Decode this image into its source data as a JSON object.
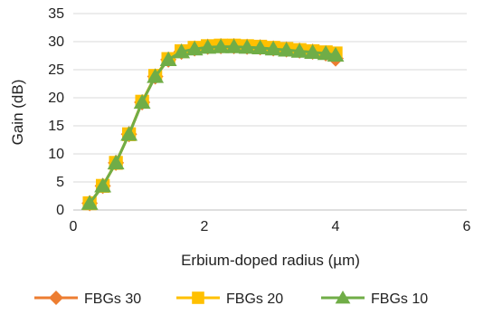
{
  "chart_data": {
    "type": "line",
    "title": "",
    "xlabel": "Erbium-doped radius (µm)",
    "ylabel": "Gain (dB)",
    "xlim": [
      0,
      6
    ],
    "ylim": [
      0,
      35
    ],
    "xticks": [
      0,
      2,
      4,
      6
    ],
    "yticks": [
      0,
      5,
      10,
      15,
      20,
      25,
      30,
      35
    ],
    "grid": "horizontal",
    "legend_position": "bottom",
    "x": [
      0.25,
      0.45,
      0.65,
      0.85,
      1.05,
      1.25,
      1.45,
      1.65,
      1.85,
      2.05,
      2.25,
      2.45,
      2.65,
      2.85,
      3.05,
      3.25,
      3.45,
      3.65,
      3.85,
      4.0
    ],
    "series": [
      {
        "name": "FBGs 30",
        "color": "#ED7D31",
        "marker": "diamond",
        "values": [
          1.2,
          4.3,
          8.4,
          13.5,
          19.2,
          23.8,
          26.8,
          28.2,
          28.8,
          29.1,
          29.2,
          29.2,
          29.1,
          29.0,
          28.8,
          28.6,
          28.4,
          28.2,
          27.9,
          27.0
        ]
      },
      {
        "name": "FBGs 20",
        "color": "#FFC000",
        "marker": "square",
        "values": [
          1.2,
          4.3,
          8.4,
          13.5,
          19.3,
          23.9,
          26.9,
          28.3,
          28.9,
          29.2,
          29.3,
          29.3,
          29.2,
          29.1,
          28.9,
          28.7,
          28.5,
          28.3,
          28.1,
          27.9
        ]
      },
      {
        "name": "FBGs 10",
        "color": "#70AD47",
        "marker": "triangle",
        "values": [
          1.2,
          4.3,
          8.4,
          13.5,
          19.2,
          23.8,
          26.8,
          28.2,
          28.7,
          29.0,
          29.1,
          29.1,
          29.0,
          28.9,
          28.7,
          28.5,
          28.3,
          28.1,
          27.9,
          27.6
        ]
      }
    ]
  }
}
